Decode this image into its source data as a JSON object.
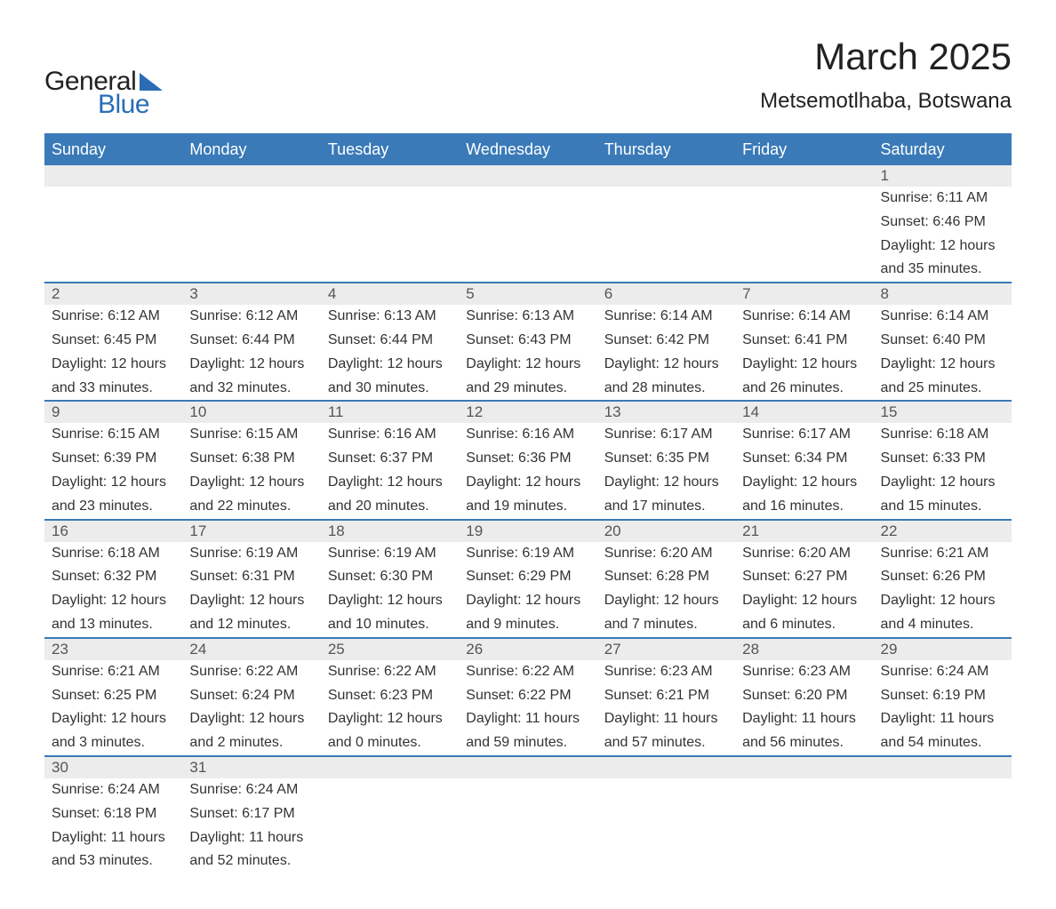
{
  "logo": {
    "text1": "General",
    "text2": "Blue"
  },
  "header": {
    "month_title": "March 2025",
    "location": "Metsemotlhaba, Botswana"
  },
  "colors": {
    "header_bg": "#3a7ab8",
    "header_text": "#ffffff",
    "date_row_bg": "#ececec",
    "row_border": "#3a7ab8",
    "body_text": "#333333",
    "logo_accent": "#2a6db5"
  },
  "typography": {
    "month_title_fontsize": 42,
    "location_fontsize": 24,
    "weekday_fontsize": 18,
    "date_fontsize": 17,
    "data_fontsize": 16
  },
  "calendar": {
    "type": "table",
    "weekdays": [
      "Sunday",
      "Monday",
      "Tuesday",
      "Wednesday",
      "Thursday",
      "Friday",
      "Saturday"
    ],
    "weeks": [
      {
        "dates": [
          "",
          "",
          "",
          "",
          "",
          "",
          "1"
        ],
        "sunrise": [
          "",
          "",
          "",
          "",
          "",
          "",
          "Sunrise: 6:11 AM"
        ],
        "sunset": [
          "",
          "",
          "",
          "",
          "",
          "",
          "Sunset: 6:46 PM"
        ],
        "daylight1": [
          "",
          "",
          "",
          "",
          "",
          "",
          "Daylight: 12 hours"
        ],
        "daylight2": [
          "",
          "",
          "",
          "",
          "",
          "",
          "and 35 minutes."
        ]
      },
      {
        "dates": [
          "2",
          "3",
          "4",
          "5",
          "6",
          "7",
          "8"
        ],
        "sunrise": [
          "Sunrise: 6:12 AM",
          "Sunrise: 6:12 AM",
          "Sunrise: 6:13 AM",
          "Sunrise: 6:13 AM",
          "Sunrise: 6:14 AM",
          "Sunrise: 6:14 AM",
          "Sunrise: 6:14 AM"
        ],
        "sunset": [
          "Sunset: 6:45 PM",
          "Sunset: 6:44 PM",
          "Sunset: 6:44 PM",
          "Sunset: 6:43 PM",
          "Sunset: 6:42 PM",
          "Sunset: 6:41 PM",
          "Sunset: 6:40 PM"
        ],
        "daylight1": [
          "Daylight: 12 hours",
          "Daylight: 12 hours",
          "Daylight: 12 hours",
          "Daylight: 12 hours",
          "Daylight: 12 hours",
          "Daylight: 12 hours",
          "Daylight: 12 hours"
        ],
        "daylight2": [
          "and 33 minutes.",
          "and 32 minutes.",
          "and 30 minutes.",
          "and 29 minutes.",
          "and 28 minutes.",
          "and 26 minutes.",
          "and 25 minutes."
        ]
      },
      {
        "dates": [
          "9",
          "10",
          "11",
          "12",
          "13",
          "14",
          "15"
        ],
        "sunrise": [
          "Sunrise: 6:15 AM",
          "Sunrise: 6:15 AM",
          "Sunrise: 6:16 AM",
          "Sunrise: 6:16 AM",
          "Sunrise: 6:17 AM",
          "Sunrise: 6:17 AM",
          "Sunrise: 6:18 AM"
        ],
        "sunset": [
          "Sunset: 6:39 PM",
          "Sunset: 6:38 PM",
          "Sunset: 6:37 PM",
          "Sunset: 6:36 PM",
          "Sunset: 6:35 PM",
          "Sunset: 6:34 PM",
          "Sunset: 6:33 PM"
        ],
        "daylight1": [
          "Daylight: 12 hours",
          "Daylight: 12 hours",
          "Daylight: 12 hours",
          "Daylight: 12 hours",
          "Daylight: 12 hours",
          "Daylight: 12 hours",
          "Daylight: 12 hours"
        ],
        "daylight2": [
          "and 23 minutes.",
          "and 22 minutes.",
          "and 20 minutes.",
          "and 19 minutes.",
          "and 17 minutes.",
          "and 16 minutes.",
          "and 15 minutes."
        ]
      },
      {
        "dates": [
          "16",
          "17",
          "18",
          "19",
          "20",
          "21",
          "22"
        ],
        "sunrise": [
          "Sunrise: 6:18 AM",
          "Sunrise: 6:19 AM",
          "Sunrise: 6:19 AM",
          "Sunrise: 6:19 AM",
          "Sunrise: 6:20 AM",
          "Sunrise: 6:20 AM",
          "Sunrise: 6:21 AM"
        ],
        "sunset": [
          "Sunset: 6:32 PM",
          "Sunset: 6:31 PM",
          "Sunset: 6:30 PM",
          "Sunset: 6:29 PM",
          "Sunset: 6:28 PM",
          "Sunset: 6:27 PM",
          "Sunset: 6:26 PM"
        ],
        "daylight1": [
          "Daylight: 12 hours",
          "Daylight: 12 hours",
          "Daylight: 12 hours",
          "Daylight: 12 hours",
          "Daylight: 12 hours",
          "Daylight: 12 hours",
          "Daylight: 12 hours"
        ],
        "daylight2": [
          "and 13 minutes.",
          "and 12 minutes.",
          "and 10 minutes.",
          "and 9 minutes.",
          "and 7 minutes.",
          "and 6 minutes.",
          "and 4 minutes."
        ]
      },
      {
        "dates": [
          "23",
          "24",
          "25",
          "26",
          "27",
          "28",
          "29"
        ],
        "sunrise": [
          "Sunrise: 6:21 AM",
          "Sunrise: 6:22 AM",
          "Sunrise: 6:22 AM",
          "Sunrise: 6:22 AM",
          "Sunrise: 6:23 AM",
          "Sunrise: 6:23 AM",
          "Sunrise: 6:24 AM"
        ],
        "sunset": [
          "Sunset: 6:25 PM",
          "Sunset: 6:24 PM",
          "Sunset: 6:23 PM",
          "Sunset: 6:22 PM",
          "Sunset: 6:21 PM",
          "Sunset: 6:20 PM",
          "Sunset: 6:19 PM"
        ],
        "daylight1": [
          "Daylight: 12 hours",
          "Daylight: 12 hours",
          "Daylight: 12 hours",
          "Daylight: 11 hours",
          "Daylight: 11 hours",
          "Daylight: 11 hours",
          "Daylight: 11 hours"
        ],
        "daylight2": [
          "and 3 minutes.",
          "and 2 minutes.",
          "and 0 minutes.",
          "and 59 minutes.",
          "and 57 minutes.",
          "and 56 minutes.",
          "and 54 minutes."
        ]
      },
      {
        "dates": [
          "30",
          "31",
          "",
          "",
          "",
          "",
          ""
        ],
        "sunrise": [
          "Sunrise: 6:24 AM",
          "Sunrise: 6:24 AM",
          "",
          "",
          "",
          "",
          ""
        ],
        "sunset": [
          "Sunset: 6:18 PM",
          "Sunset: 6:17 PM",
          "",
          "",
          "",
          "",
          ""
        ],
        "daylight1": [
          "Daylight: 11 hours",
          "Daylight: 11 hours",
          "",
          "",
          "",
          "",
          ""
        ],
        "daylight2": [
          "and 53 minutes.",
          "and 52 minutes.",
          "",
          "",
          "",
          "",
          ""
        ]
      }
    ]
  }
}
